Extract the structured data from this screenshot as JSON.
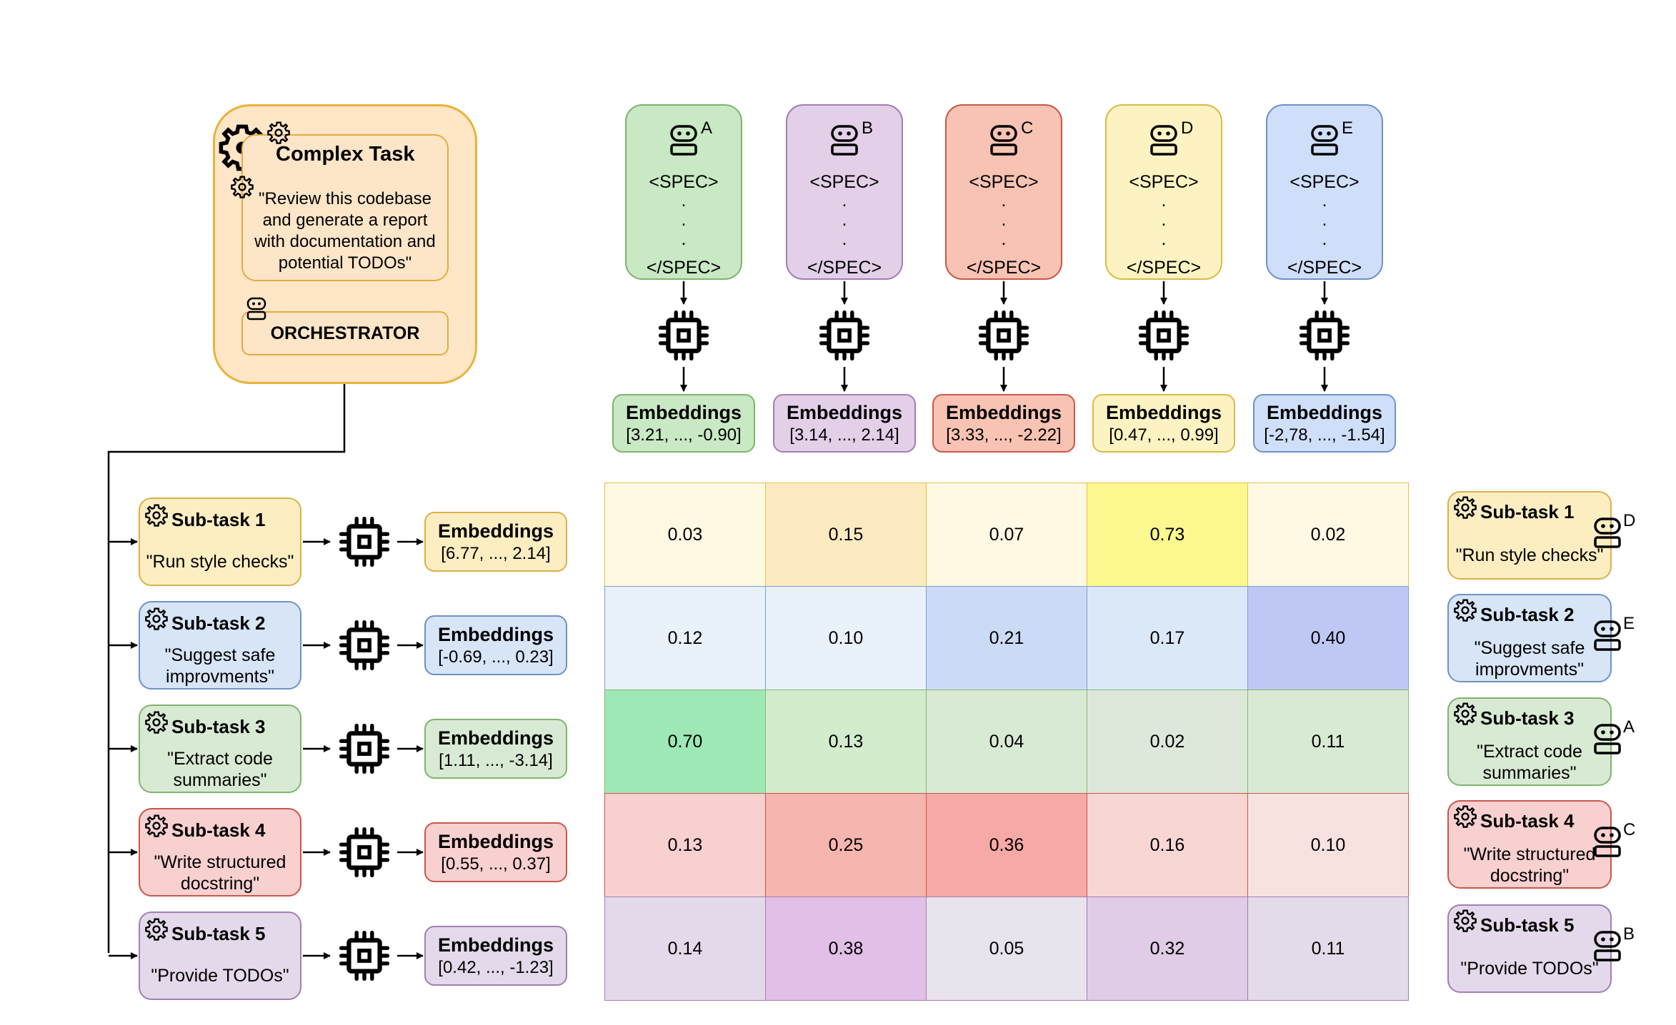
{
  "complex_task": {
    "title": "Complex Task",
    "description": "\"Review this codebase and generate a report with documentation and potential TODOs\"",
    "orchestrator_label": "ORCHESTRATOR"
  },
  "agents": [
    {
      "letter": "A",
      "spec_open": "<SPEC>",
      "dots": ".\n.\n.",
      "spec_close": "</SPEC>",
      "emb_title": "Embeddings",
      "emb_values": "[3.21, ..., -0.90]",
      "color": "#c9e8c4",
      "border": "#7fb46d"
    },
    {
      "letter": "B",
      "spec_open": "<SPEC>",
      "dots": ".\n.\n.",
      "spec_close": "</SPEC>",
      "emb_title": "Embeddings",
      "emb_values": "[3.14, ..., 2.14]",
      "color": "#e3cfe8",
      "border": "#a17fb2"
    },
    {
      "letter": "C",
      "spec_open": "<SPEC>",
      "dots": ".\n.\n.",
      "spec_close": "</SPEC>",
      "emb_title": "Embeddings",
      "emb_values": "[3.33, ..., -2.22]",
      "color": "#f8c3b3",
      "border": "#c9574a"
    },
    {
      "letter": "D",
      "spec_open": "<SPEC>",
      "dots": ".\n.\n.",
      "spec_close": "</SPEC>",
      "emb_title": "Embeddings",
      "emb_values": "[0.47, ..., 0.99]",
      "color": "#fdf3c2",
      "border": "#d8bb45"
    },
    {
      "letter": "E",
      "spec_open": "<SPEC>",
      "dots": ".\n.\n.",
      "spec_close": "</SPEC>",
      "emb_title": "Embeddings",
      "emb_values": "[-2,78, ..., -1.54]",
      "color": "#cfdffa",
      "border": "#6f92c6"
    }
  ],
  "subtasks": [
    {
      "title": "Sub-task 1",
      "desc": "\"Run style checks\"",
      "emb_title": "Embeddings",
      "emb_values": "[6.77, ..., 2.14]",
      "assigned": "D",
      "color": "#fdeec2",
      "border": "#d8b14a"
    },
    {
      "title": "Sub-task 2",
      "desc": "\"Suggest safe improvments\"",
      "emb_title": "Embeddings",
      "emb_values": "[-0.69, ..., 0.23]",
      "assigned": "E",
      "color": "#d7e5f7",
      "border": "#6f92c6"
    },
    {
      "title": "Sub-task 3",
      "desc": "\"Extract code summaries\"",
      "emb_title": "Embeddings",
      "emb_values": "[1.11, ..., -3.14]",
      "assigned": "A",
      "color": "#d8ead3",
      "border": "#7fb46d"
    },
    {
      "title": "Sub-task 4",
      "desc": "\"Write structured docstring\"",
      "emb_title": "Embeddings",
      "emb_values": "[0.55, ..., 0.37]",
      "assigned": "C",
      "color": "#f8d0cf",
      "border": "#c9574a"
    },
    {
      "title": "Sub-task 5",
      "desc": "\"Provide TODOs\"",
      "emb_title": "Embeddings",
      "emb_values": "[0.42, ..., -1.23]",
      "assigned": "B",
      "color": "#e3d9ea",
      "border": "#a17fb2"
    }
  ],
  "similarity_matrix": [
    [
      "0.03",
      "0.15",
      "0.07",
      "0.73",
      "0.02"
    ],
    [
      "0.12",
      "0.10",
      "0.21",
      "0.17",
      "0.40"
    ],
    [
      "0.70",
      "0.13",
      "0.04",
      "0.02",
      "0.11"
    ],
    [
      "0.13",
      "0.25",
      "0.36",
      "0.16",
      "0.10"
    ],
    [
      "0.14",
      "0.38",
      "0.05",
      "0.32",
      "0.11"
    ]
  ],
  "matrix_colors": [
    [
      "#fff8e3",
      "#fdeac0",
      "#fff8e3",
      "#fdf88f",
      "#fff8e3"
    ],
    [
      "#e9f1fb",
      "#e9f1fb",
      "#cbdbf6",
      "#dbe8f8",
      "#bfc8f5"
    ],
    [
      "#9ee8b6",
      "#d2eccc",
      "#d8ead3",
      "#dde8da",
      "#d8ead3"
    ],
    [
      "#f8d0cf",
      "#f6b5ae",
      "#f6a9a6",
      "#f8d6d4",
      "#f7e2e0"
    ],
    [
      "#e3d9ea",
      "#e1bfe7",
      "#e8e3ec",
      "#e0cce6",
      "#e3dbe9"
    ]
  ],
  "row_borders": [
    "#e9be52",
    "#7f9ed0",
    "#86b874",
    "#c9574a",
    "#a17fb2"
  ]
}
